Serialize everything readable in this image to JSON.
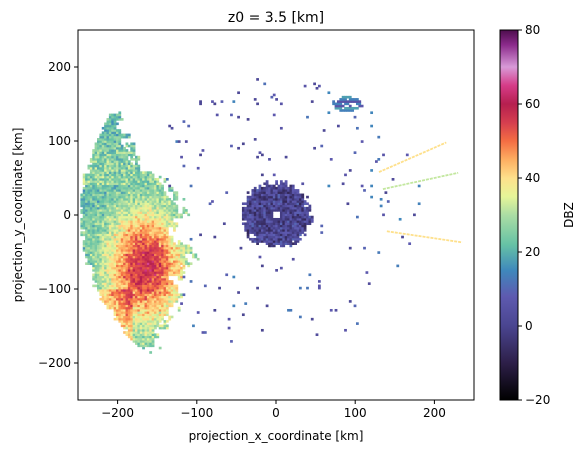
{
  "chart_data": {
    "type": "heatmap",
    "title": "z0 = 3.5 [km]",
    "xlabel": "projection_x_coordinate [km]",
    "ylabel": "projection_y_coordinate [km]",
    "xlim": [
      -250,
      250
    ],
    "ylim": [
      -250,
      250
    ],
    "xticks": [
      -200,
      -100,
      0,
      100,
      200
    ],
    "yticks": [
      -200,
      -100,
      0,
      100,
      200
    ],
    "xtick_labels": [
      "−200",
      "−100",
      "0",
      "100",
      "200"
    ],
    "ytick_labels": [
      "−200",
      "−100",
      "0",
      "100",
      "200"
    ],
    "grid": false,
    "colorbar": {
      "label": "DBZ",
      "range": [
        -20,
        80
      ],
      "ticks": [
        -20,
        0,
        20,
        40,
        60,
        80
      ],
      "tick_labels": [
        "−20",
        "0",
        "20",
        "40",
        "60",
        "80"
      ],
      "colormap": "Spectral_r"
    },
    "features": [
      {
        "name": "western precipitation band",
        "x_range": [
          -245,
          -105
        ],
        "y_range": [
          -195,
          140
        ],
        "dbz_range": [
          10,
          62
        ]
      },
      {
        "name": "core of heavy rain",
        "x_range": [
          -215,
          -130
        ],
        "y_range": [
          -160,
          20
        ],
        "dbz_range": [
          40,
          62
        ]
      },
      {
        "name": "near-radar clutter ring",
        "center": [
          0,
          0
        ],
        "radius_km": 40,
        "dbz_range": [
          -5,
          10
        ]
      },
      {
        "name": "radial spike upper",
        "from": [
          130,
          58
        ],
        "to": [
          215,
          98
        ],
        "dbz": 40
      },
      {
        "name": "radial spike middle",
        "from": [
          135,
          35
        ],
        "to": [
          230,
          57
        ],
        "dbz": 32
      },
      {
        "name": "radial spike lower",
        "from": [
          140,
          -22
        ],
        "to": [
          235,
          -37
        ],
        "dbz": 40
      },
      {
        "name": "northeast echo",
        "center": [
          90,
          150
        ],
        "dbz_range": [
          5,
          25
        ]
      }
    ]
  }
}
